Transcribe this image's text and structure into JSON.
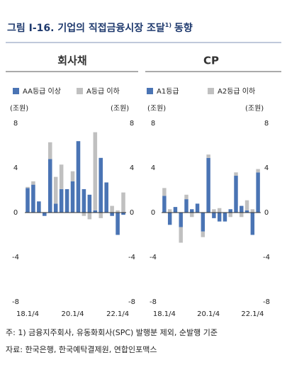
{
  "header": {
    "title": "그림 Ⅰ-16. 기업의 직접금융시장 조달",
    "title_note": "1)",
    "title_suffix": "동향"
  },
  "chart_data": [
    {
      "type": "bar",
      "stacked": true,
      "title": "회사채",
      "y_label": "(조원)",
      "y2_label": "(조원)",
      "categories": [
        "18.1/4",
        null,
        null,
        null,
        null,
        null,
        null,
        null,
        "20.1/4",
        null,
        null,
        null,
        null,
        null,
        null,
        null,
        "22.1/4",
        null
      ],
      "series": [
        {
          "name": "AA등급 이상",
          "color": "#4a74b4",
          "values": [
            2.2,
            2.5,
            1.0,
            -0.3,
            4.8,
            0.8,
            2.1,
            2.1,
            2.8,
            6.4,
            2.1,
            1.6,
            0.2,
            4.9,
            2.7,
            -0.3,
            -2.0,
            -0.2
          ]
        },
        {
          "name": "A등급 이하",
          "color": "#c0c0c0",
          "values": [
            0.1,
            0.3,
            0,
            0,
            1.5,
            2.4,
            2.2,
            0,
            0.9,
            0,
            -0.3,
            -0.6,
            7.0,
            -0.5,
            0,
            0.6,
            0.2,
            1.8
          ]
        }
      ],
      "ylim": [
        -8,
        8
      ],
      "yticks": [
        -8,
        -4,
        0,
        4,
        8
      ],
      "y2lim": [
        -8,
        8
      ],
      "y2ticks": [
        -8,
        -4,
        0,
        4,
        8
      ]
    },
    {
      "type": "bar",
      "stacked": true,
      "title": "CP",
      "y_label": "(조원)",
      "y2_label": "(조원)",
      "categories": [
        "18.1/4",
        null,
        null,
        null,
        null,
        null,
        null,
        null,
        "20.1/4",
        null,
        null,
        null,
        null,
        null,
        null,
        null,
        "22.1/4",
        null
      ],
      "series": [
        {
          "name": "A1등급",
          "color": "#4a74b4",
          "values": [
            1.5,
            -1.1,
            0.5,
            -1.3,
            1.2,
            0.3,
            0.8,
            -1.7,
            4.9,
            -0.5,
            -0.8,
            -0.8,
            0.3,
            3.3,
            0.6,
            0.2,
            -2.0,
            3.6
          ]
        },
        {
          "name": "A2등급 이하",
          "color": "#c0c0c0",
          "values": [
            0.7,
            0.3,
            0,
            -1.4,
            0.4,
            -0.4,
            0,
            -0.5,
            0.3,
            0.3,
            0.4,
            0,
            -0.4,
            0.3,
            -0.4,
            0.9,
            0.3,
            0.3
          ]
        }
      ],
      "ylim": [
        -8,
        8
      ],
      "yticks": [
        -8,
        -4,
        0,
        4,
        8
      ],
      "y2lim": [
        -8,
        8
      ],
      "y2ticks": [
        -8,
        -4,
        0,
        4,
        8
      ]
    }
  ],
  "notes": [
    "주: 1) 금융지주회사, 유동화회사(SPC) 발행분 제외, 순발행 기준",
    "자료: 한국은행, 한국예탁결제원, 연합인포맥스"
  ]
}
